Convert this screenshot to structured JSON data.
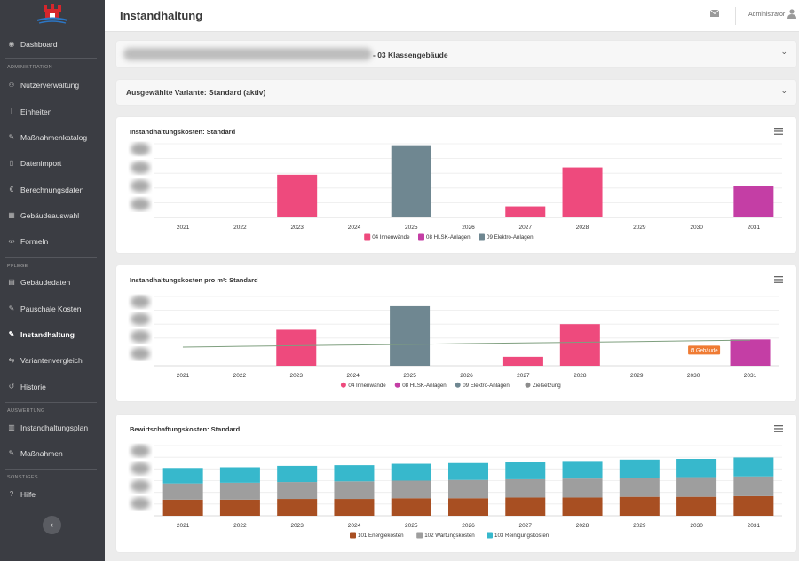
{
  "app": {
    "page_title": "Instandhaltung",
    "user": "Administrator"
  },
  "sidebar": {
    "items": [
      {
        "label": "Dashboard",
        "icon": "palette-icon"
      },
      {
        "label": "Nutzerverwaltung",
        "icon": "users-icon"
      },
      {
        "label": "Einheiten",
        "icon": "thermometer-icon"
      },
      {
        "label": "Maßnahmenkatalog",
        "icon": "wrench-icon"
      },
      {
        "label": "Datenimport",
        "icon": "file-icon"
      },
      {
        "label": "Berechnungsdaten",
        "icon": "euro-icon"
      },
      {
        "label": "Gebäudeauswahl",
        "icon": "building-icon"
      },
      {
        "label": "Formeln",
        "icon": "code-icon"
      },
      {
        "label": "Gebäudedaten",
        "icon": "database-icon"
      },
      {
        "label": "Pauschale Kosten",
        "icon": "wrench-icon"
      },
      {
        "label": "Instandhaltung",
        "icon": "wrench-icon"
      },
      {
        "label": "Variantenvergleich",
        "icon": "compare-icon"
      },
      {
        "label": "Historie",
        "icon": "history-icon"
      },
      {
        "label": "Instandhaltungsplan",
        "icon": "map-icon"
      },
      {
        "label": "Maßnahmen",
        "icon": "wrench-icon"
      },
      {
        "label": "Hilfe",
        "icon": "help-icon"
      }
    ],
    "sections": [
      "ADMINISTRATION",
      "PFLEGE",
      "AUSWERTUNG",
      "SONSTIGES"
    ],
    "collapse_icon": "‹"
  },
  "panels": {
    "building": "- 03 Klassengebäude",
    "variant": "Ausgewählte Variante: Standard (aktiv)"
  },
  "chart_data": [
    {
      "type": "bar",
      "title": "Instandhaltungskosten: Standard",
      "categories": [
        "2021",
        "2022",
        "2023",
        "2024",
        "2025",
        "2026",
        "2027",
        "2028",
        "2029",
        "2030",
        "2031"
      ],
      "series": [
        {
          "name": "04 Innenwände",
          "color": "#ee4a7d",
          "values": [
            0,
            0,
            0.58,
            0,
            0,
            0,
            0.15,
            0.68,
            0,
            0,
            0
          ]
        },
        {
          "name": "08 HLSK-Anlagen",
          "color": "#c43ea5",
          "values": [
            0,
            0,
            0,
            0,
            0,
            0,
            0,
            0,
            0,
            0,
            0.43
          ]
        },
        {
          "name": "09 Elektro-Anlagen",
          "color": "#6f8791",
          "values": [
            0,
            0,
            0,
            0,
            0.98,
            0,
            0,
            0,
            0,
            0,
            0
          ]
        }
      ],
      "y_range": [
        0,
        1
      ],
      "y_axis_blurred": true
    },
    {
      "type": "bar",
      "title": "Instandhaltungskosten pro m²: Standard",
      "categories": [
        "2021",
        "2022",
        "2023",
        "2024",
        "2025",
        "2026",
        "2027",
        "2028",
        "2029",
        "2030",
        "2031"
      ],
      "series": [
        {
          "name": "04 Innenwände",
          "color": "#ee4a7d",
          "values": [
            0,
            0,
            0.52,
            0,
            0,
            0,
            0.13,
            0.6,
            0,
            0,
            0
          ]
        },
        {
          "name": "08 HLSK-Anlagen",
          "color": "#c43ea5",
          "values": [
            0,
            0,
            0,
            0,
            0,
            0,
            0,
            0,
            0,
            0,
            0.38
          ]
        },
        {
          "name": "09 Elektro-Anlagen",
          "color": "#6f8791",
          "values": [
            0,
            0,
            0,
            0,
            0.86,
            0,
            0,
            0,
            0,
            0,
            0
          ]
        },
        {
          "name": "Zielsetzung",
          "color": "#8c8c8c",
          "type": "line",
          "values": [
            0.27,
            0.28,
            0.29,
            0.3,
            0.31,
            0.32,
            0.33,
            0.34,
            0.35,
            0.36,
            0.37
          ]
        }
      ],
      "reference_line": {
        "label": "Ø Gebäude",
        "value": 0.2,
        "color": "#ef7b33"
      },
      "y_range": [
        0,
        1
      ],
      "y_axis_blurred": true
    },
    {
      "type": "bar",
      "stacked": true,
      "title": "Bewirtschaftungskosten: Standard",
      "categories": [
        "2021",
        "2022",
        "2023",
        "2024",
        "2025",
        "2026",
        "2027",
        "2028",
        "2029",
        "2030",
        "2031"
      ],
      "series": [
        {
          "name": "101 Energiekosten",
          "color": "#a84f22",
          "values": [
            0.23,
            0.23,
            0.24,
            0.24,
            0.25,
            0.25,
            0.26,
            0.26,
            0.27,
            0.27,
            0.28
          ]
        },
        {
          "name": "102 Wartungskosten",
          "color": "#9e9e9e",
          "values": [
            0.23,
            0.24,
            0.24,
            0.25,
            0.25,
            0.26,
            0.26,
            0.27,
            0.27,
            0.28,
            0.28
          ]
        },
        {
          "name": "103 Reinigungskosten",
          "color": "#37b8cc",
          "values": [
            0.22,
            0.22,
            0.23,
            0.23,
            0.24,
            0.24,
            0.25,
            0.25,
            0.26,
            0.26,
            0.27
          ]
        }
      ],
      "y_range": [
        0,
        1
      ],
      "y_axis_blurred": true
    }
  ]
}
